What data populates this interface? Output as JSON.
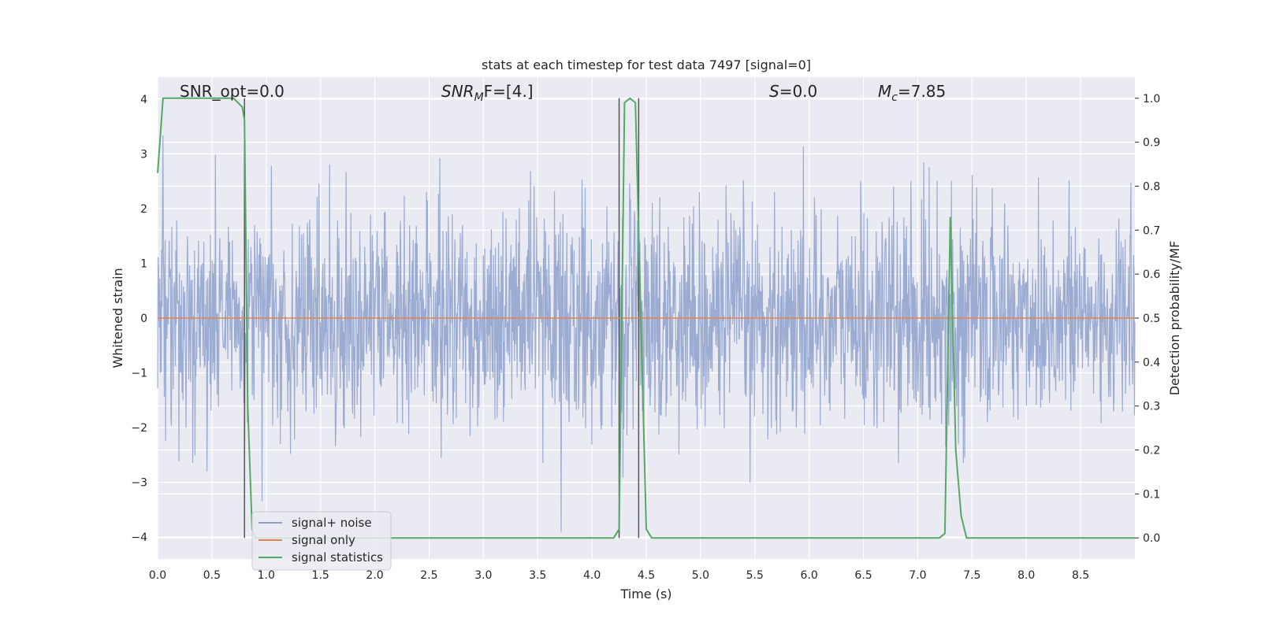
{
  "chart_data": {
    "type": "line",
    "title": "stats at each timestep for test data 7497 [signal=0]",
    "xlabel": "Time (s)",
    "ylabel": "Whitened strain",
    "y2label": "Detection probability/MF",
    "xlim": [
      0.0,
      9.0
    ],
    "ylim": [
      -4.4,
      4.4
    ],
    "y2lim": [
      -0.048,
      1.048
    ],
    "xticks": [
      0.0,
      0.5,
      1.0,
      1.5,
      2.0,
      2.5,
      3.0,
      3.5,
      4.0,
      4.5,
      5.0,
      5.5,
      6.0,
      6.5,
      7.0,
      7.5,
      8.0,
      8.5
    ],
    "xtick_labels": [
      "0.0",
      "0.5",
      "1.0",
      "1.5",
      "2.0",
      "2.5",
      "3.0",
      "3.5",
      "4.0",
      "4.5",
      "5.0",
      "5.5",
      "6.0",
      "6.5",
      "7.0",
      "7.5",
      "8.0",
      "8.5"
    ],
    "yticks": [
      -4,
      -3,
      -2,
      -1,
      0,
      1,
      2,
      3,
      4
    ],
    "ytick_labels": [
      "−4",
      "−3",
      "−2",
      "−1",
      "0",
      "1",
      "2",
      "3",
      "4"
    ],
    "y2ticks": [
      0.0,
      0.1,
      0.2,
      0.3,
      0.4,
      0.5,
      0.6,
      0.7,
      0.8,
      0.9,
      1.0
    ],
    "y2tick_labels": [
      "0.0",
      "0.1",
      "0.2",
      "0.3",
      "0.4",
      "0.5",
      "0.6",
      "0.7",
      "0.8",
      "0.9",
      "1.0"
    ],
    "grid": true,
    "legend_position": "lower-left",
    "annotations": {
      "snr_opt": "SNR_opt=0.0",
      "snr_mf_main": "SNR",
      "snr_mf_sub": "M",
      "snr_mf_tail": "F=[4.]",
      "s_italic": "S",
      "s_tail": "=0.0",
      "mc_main": "M",
      "mc_sub": "c",
      "mc_tail": "=7.85"
    },
    "vertical_lines_x": [
      0.8,
      4.25,
      4.43
    ],
    "series": [
      {
        "name": "signal+ noise",
        "axis": "left",
        "color": "#8da0cb",
        "description": "whitened noise, approx gaussian, range about -3.9 to 3.6",
        "noise_amplitude": 1.0,
        "noise_range": [
          -3.9,
          3.6
        ],
        "num_samples": 2200
      },
      {
        "name": "signal only",
        "axis": "left",
        "color": "#dd8452",
        "x": [
          0.0,
          9.0
        ],
        "y": [
          0.0,
          0.0
        ]
      },
      {
        "name": "signal statistics",
        "axis": "right",
        "color": "#55a868",
        "x": [
          0.0,
          0.05,
          0.1,
          0.2,
          0.3,
          0.5,
          0.7,
          0.78,
          0.8,
          0.83,
          0.87,
          0.9,
          1.0,
          2.0,
          3.0,
          4.0,
          4.2,
          4.25,
          4.3,
          4.35,
          4.4,
          4.45,
          4.5,
          4.55,
          5.0,
          6.0,
          7.0,
          7.2,
          7.25,
          7.3,
          7.35,
          7.4,
          7.45,
          8.0,
          8.5,
          9.0
        ],
        "y": [
          0.83,
          1.0,
          1.0,
          1.0,
          1.0,
          1.0,
          1.0,
          0.98,
          0.95,
          0.3,
          0.02,
          0.0,
          0.0,
          0.0,
          0.0,
          0.0,
          0.0,
          0.02,
          0.99,
          1.0,
          0.99,
          0.5,
          0.02,
          0.0,
          0.0,
          0.0,
          0.0,
          0.0,
          0.01,
          0.73,
          0.2,
          0.05,
          0.0,
          0.0,
          0.0,
          0.0
        ]
      }
    ]
  }
}
